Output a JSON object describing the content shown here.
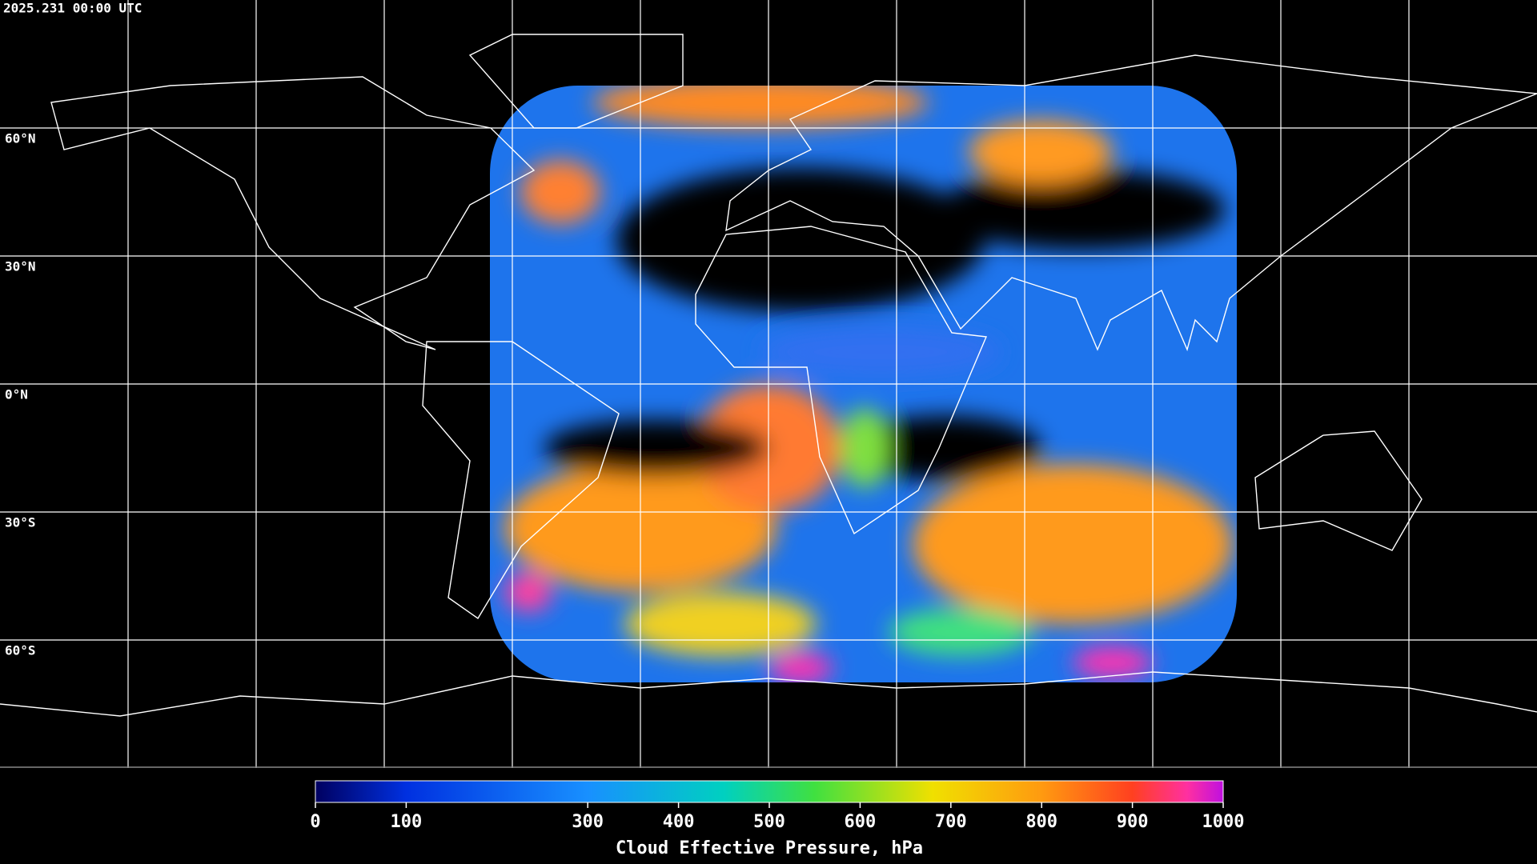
{
  "header": {
    "timestamp": "2025.231 00:00 UTC"
  },
  "map": {
    "latitude_labels": [
      "60°N",
      "30°N",
      "0°N",
      "30°S",
      "60°S"
    ]
  },
  "colorbar": {
    "label": "Cloud Effective Pressure, hPa",
    "lim": [
      0,
      1000
    ],
    "ticks": [
      0,
      100,
      300,
      400,
      500,
      600,
      700,
      800,
      900,
      1000
    ]
  }
}
